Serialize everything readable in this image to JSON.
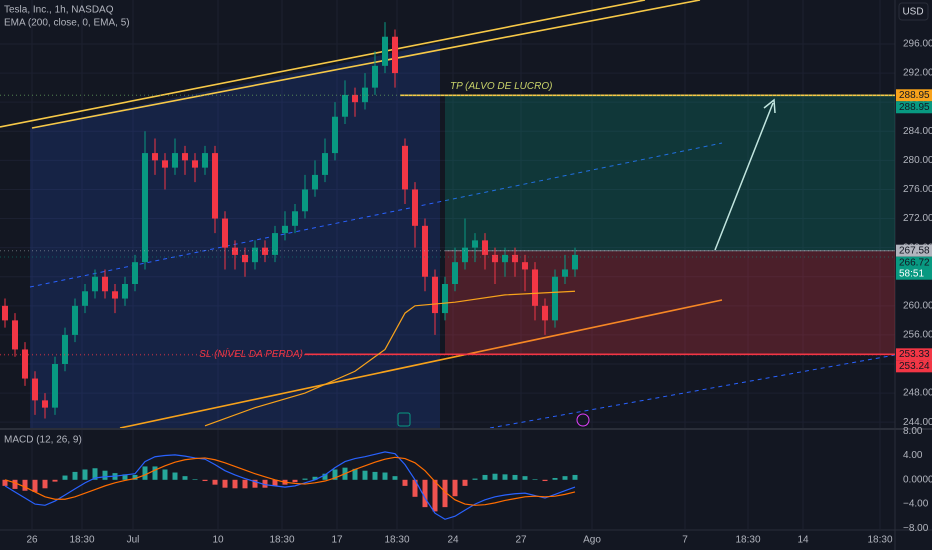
{
  "header": {
    "symbol": "Tesla, Inc., 1h, NASDAQ",
    "currency": "USD"
  },
  "chart_data": [
    {
      "type": "candlestick",
      "open": [
        260,
        258,
        254,
        250,
        247,
        246,
        252,
        256,
        260,
        262,
        264,
        262,
        261,
        263,
        266,
        281,
        280,
        279,
        281,
        280,
        279,
        281,
        272,
        268,
        267,
        266,
        268,
        267,
        270,
        271,
        273,
        276,
        278,
        281,
        286,
        289,
        288,
        290,
        293,
        297,
        282,
        276,
        271,
        264,
        259,
        263,
        266,
        268,
        269,
        267,
        266,
        267,
        266,
        265,
        260,
        258,
        264,
        265
      ],
      "high": [
        261,
        259,
        255,
        251,
        248,
        253,
        257,
        261,
        263,
        265,
        265,
        263,
        264,
        267,
        284,
        283,
        281,
        283,
        282,
        281,
        282,
        282,
        273,
        269,
        268,
        269,
        269,
        271,
        273,
        274,
        278,
        280,
        283,
        288,
        291,
        290,
        292,
        295,
        299,
        298,
        283,
        277,
        272,
        265,
        264,
        268,
        272,
        270,
        270,
        268,
        268,
        268,
        267,
        266,
        261,
        265,
        267,
        268
      ],
      "low": [
        257,
        253,
        249,
        245,
        244.5,
        245,
        251,
        255,
        259,
        261,
        261,
        259,
        260,
        262,
        265,
        278,
        276,
        278,
        278,
        277,
        278,
        270,
        265,
        265,
        264,
        265,
        266,
        266,
        269,
        270,
        272,
        275,
        277,
        280,
        285,
        286,
        287,
        289,
        292,
        290,
        274,
        268,
        262,
        256,
        258,
        262,
        265,
        266,
        265,
        263,
        264,
        264,
        262,
        258,
        256,
        257,
        263,
        264
      ],
      "close": [
        258,
        254,
        250,
        247,
        246,
        252,
        256,
        260,
        262,
        264,
        262,
        261,
        263,
        266,
        281,
        280,
        279,
        281,
        280,
        279,
        281,
        272,
        268,
        267,
        266,
        268,
        267,
        270,
        271,
        273,
        276,
        278,
        281,
        286,
        289,
        288,
        290,
        293,
        297,
        292,
        276,
        271,
        264,
        259,
        263,
        266,
        268,
        269,
        267,
        266,
        267,
        266,
        265,
        260,
        258,
        264,
        265,
        267
      ],
      "up_color": "#089981",
      "down_color": "#f23645",
      "xlim": [
        -0.5,
        89
      ],
      "ylim": [
        243.2,
        302.05
      ],
      "xticks": [
        {
          "value": 2.7,
          "label": "26"
        },
        {
          "value": 7.7,
          "label": "18:30"
        },
        {
          "value": 12.8,
          "label": "Jul"
        },
        {
          "value": 21.3,
          "label": "10"
        },
        {
          "value": 27.7,
          "label": "18:30"
        },
        {
          "value": 33.2,
          "label": "17"
        },
        {
          "value": 39.2,
          "label": "18:30"
        },
        {
          "value": 44.8,
          "label": "24"
        },
        {
          "value": 51.6,
          "label": "27"
        },
        {
          "value": 58.7,
          "label": "Ago"
        },
        {
          "value": 68,
          "label": "7"
        },
        {
          "value": 74.3,
          "label": "18:30"
        },
        {
          "value": 79.8,
          "label": "14"
        },
        {
          "value": 87.5,
          "label": "18:30"
        }
      ],
      "yticks": [
        {
          "value": 244,
          "label": "244.00"
        },
        {
          "value": 248,
          "label": "248.00"
        },
        {
          "value": 252,
          "label": "252.00"
        },
        {
          "value": 256,
          "label": "256.00"
        },
        {
          "value": 260,
          "label": "260.00"
        },
        {
          "value": 264,
          "label": "264.00"
        },
        {
          "value": 268,
          "label": "268.00"
        },
        {
          "value": 272,
          "label": "272.00"
        },
        {
          "value": 276,
          "label": "276.00"
        },
        {
          "value": 280,
          "label": "280.00"
        },
        {
          "value": 284,
          "label": "284.00"
        },
        {
          "value": 288,
          "label": "288.00"
        },
        {
          "value": 292,
          "label": "292.00"
        },
        {
          "value": 296,
          "label": "296.00"
        }
      ],
      "grid": true,
      "ema": {
        "name": "EMA (200, close, 0, EMA, 5)",
        "color": "#f7a21b",
        "x": [
          20,
          25,
          30,
          35,
          38,
          40,
          41,
          45,
          50,
          57
        ],
        "values": [
          243.5,
          246,
          248,
          251,
          254,
          259,
          260,
          260.5,
          261.5,
          262
        ]
      },
      "position": {
        "tp": 288.95,
        "entry": 267.58,
        "sl": 253.33,
        "tp_label": "TP (ALVO DE LUCRO)",
        "sl_label": "SL (NÍVEL DA PERDA)"
      },
      "price_labels": [
        {
          "value": 288.95,
          "color": "#f7a21b"
        },
        {
          "value": 288.95,
          "color": "#089981"
        },
        {
          "value": 267.58,
          "color": "#b2b5be"
        },
        {
          "value": 266.72,
          "color": "#089981",
          "countdown": "58:51"
        },
        {
          "value": 253.33,
          "color": "#f23645"
        },
        {
          "value": 253.24,
          "color": "#f23645"
        }
      ]
    },
    {
      "type": "macd",
      "title": "MACD (12, 26, 9)",
      "ylim": [
        -8.1,
        8.2
      ],
      "yticks": [
        {
          "value": 8,
          "label": "8.00"
        },
        {
          "value": 4,
          "label": "4.00"
        },
        {
          "value": 0,
          "label": "0.0000"
        },
        {
          "value": -4,
          "label": "−4.00"
        },
        {
          "value": -8,
          "label": "−8.00"
        }
      ],
      "histogram": {
        "up_color": "#26a69a",
        "down_color": "#ef5350",
        "values": [
          -1,
          -1.5,
          -1.8,
          -2,
          -1.4,
          -0.3,
          0.7,
          1.3,
          1.7,
          1.9,
          1.5,
          1.1,
          0.9,
          0.8,
          2.2,
          2.2,
          1.7,
          1.2,
          0.6,
          0.1,
          -0.2,
          -0.8,
          -1.3,
          -1.4,
          -1.4,
          -1.3,
          -1.3,
          -1,
          -0.8,
          -0.4,
          0.2,
          0.5,
          1,
          1.7,
          2,
          1.8,
          1.5,
          1.3,
          1.2,
          0.6,
          -1,
          -2.8,
          -4.5,
          -5.2,
          -4.5,
          -2.7,
          -1,
          0.2,
          0.8,
          1,
          0.9,
          0.8,
          0.6,
          0.1,
          -0.2,
          0.3,
          0.6,
          0.8
        ]
      },
      "series": [
        {
          "color": "#2962ff",
          "values": [
            -1,
            -2,
            -3,
            -4,
            -4.2,
            -3.5,
            -2.5,
            -1.5,
            -0.5,
            0.3,
            0.5,
            0.6,
            0.8,
            1,
            3,
            3.8,
            4,
            4.1,
            3.9,
            3.6,
            3.4,
            2.5,
            1.5,
            0.8,
            0.2,
            -0.3,
            -0.8,
            -1,
            -1.2,
            -1,
            -0.5,
            0,
            0.8,
            2,
            3,
            3.5,
            3.8,
            4.2,
            4.6,
            4.3,
            2.5,
            0,
            -3,
            -5.5,
            -6.5,
            -6,
            -5,
            -4,
            -3.3,
            -2.8,
            -2.5,
            -2.3,
            -2.2,
            -2.6,
            -3,
            -2.4,
            -1.8,
            -1.2
          ]
        },
        {
          "color": "#ff6d00",
          "values": [
            0,
            -0.5,
            -1.2,
            -2,
            -2.8,
            -3.2,
            -3.2,
            -2.8,
            -2.2,
            -1.6,
            -1,
            -0.5,
            -0.1,
            0.2,
            0.8,
            1.6,
            2.3,
            2.9,
            3.3,
            3.5,
            3.6,
            3.3,
            2.8,
            2.2,
            1.6,
            1,
            0.5,
            0,
            -0.4,
            -0.6,
            -0.7,
            -0.5,
            -0.2,
            0.3,
            1,
            1.7,
            2.3,
            2.9,
            3.4,
            3.7,
            3.5,
            2.8,
            1.5,
            -0.3,
            -2,
            -3.3,
            -4,
            -4.2,
            -4.1,
            -3.8,
            -3.4,
            -3.1,
            -2.8,
            -2.7,
            -2.8,
            -2.7,
            -2.4,
            -2
          ]
        }
      ]
    }
  ]
}
